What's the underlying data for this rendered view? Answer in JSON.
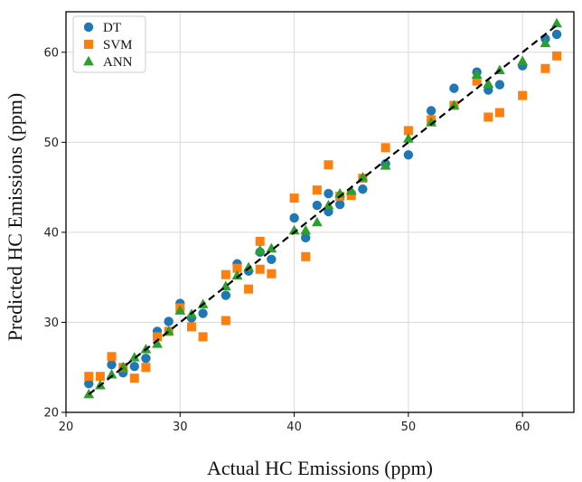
{
  "chart_data": {
    "type": "scatter",
    "xlabel": "Actual HC Emissions (ppm)",
    "ylabel": "Predicted HC Emissions (ppm)",
    "xlim": [
      20,
      64.5
    ],
    "ylim": [
      20,
      64.5
    ],
    "xticks": [
      "20",
      "30",
      "40",
      "50",
      "60"
    ],
    "yticks": [
      "20",
      "30",
      "40",
      "50",
      "60"
    ],
    "grid": true,
    "legend_position": "top-left",
    "reference_line": {
      "style": "dashed",
      "color": "#000000",
      "from": [
        22,
        22
      ],
      "to": [
        63,
        63
      ]
    },
    "series": [
      {
        "name": "DT",
        "marker": "circle",
        "color": "#1f77b4",
        "points": [
          [
            22,
            23.2
          ],
          [
            24,
            25.3
          ],
          [
            25,
            24.4
          ],
          [
            26,
            25.1
          ],
          [
            27,
            26.0
          ],
          [
            28,
            29.0
          ],
          [
            29,
            30.1
          ],
          [
            30,
            32.1
          ],
          [
            31,
            30.5
          ],
          [
            32,
            31.0
          ],
          [
            34,
            33.0
          ],
          [
            35,
            36.5
          ],
          [
            36,
            35.7
          ],
          [
            37,
            37.8
          ],
          [
            38,
            37.0
          ],
          [
            40,
            41.6
          ],
          [
            41,
            39.4
          ],
          [
            42,
            43.0
          ],
          [
            43,
            44.3
          ],
          [
            43,
            42.3
          ],
          [
            44,
            43.1
          ],
          [
            45,
            44.3
          ],
          [
            46,
            44.8
          ],
          [
            48,
            47.6
          ],
          [
            50,
            48.6
          ],
          [
            52,
            53.5
          ],
          [
            54,
            56.0
          ],
          [
            56,
            57.8
          ],
          [
            57,
            55.8
          ],
          [
            58,
            56.4
          ],
          [
            60,
            58.5
          ],
          [
            62,
            61.5
          ],
          [
            63,
            62.0
          ]
        ]
      },
      {
        "name": "SVM",
        "marker": "square",
        "color": "#ff7f0e",
        "points": [
          [
            22,
            24.0
          ],
          [
            23,
            24.0
          ],
          [
            24,
            26.2
          ],
          [
            25,
            25.0
          ],
          [
            26,
            23.8
          ],
          [
            27,
            25.0
          ],
          [
            28,
            28.4
          ],
          [
            29,
            29.0
          ],
          [
            30,
            31.6
          ],
          [
            31,
            29.5
          ],
          [
            32,
            28.4
          ],
          [
            34,
            35.3
          ],
          [
            34,
            30.2
          ],
          [
            35,
            36.0
          ],
          [
            36,
            33.7
          ],
          [
            37,
            39.0
          ],
          [
            37,
            35.9
          ],
          [
            38,
            35.4
          ],
          [
            40,
            43.8
          ],
          [
            41,
            37.3
          ],
          [
            42,
            44.7
          ],
          [
            43,
            47.5
          ],
          [
            44,
            44.0
          ],
          [
            45,
            44.1
          ],
          [
            46,
            46.0
          ],
          [
            48,
            49.4
          ],
          [
            50,
            51.3
          ],
          [
            52,
            52.5
          ],
          [
            54,
            54.1
          ],
          [
            56,
            56.8
          ],
          [
            57,
            52.8
          ],
          [
            58,
            53.3
          ],
          [
            60,
            55.2
          ],
          [
            62,
            58.2
          ],
          [
            63,
            59.6
          ]
        ]
      },
      {
        "name": "ANN",
        "marker": "triangle",
        "color": "#2ca02c",
        "points": [
          [
            22,
            22.0
          ],
          [
            23,
            23.0
          ],
          [
            24,
            24.2
          ],
          [
            25,
            25.0
          ],
          [
            26,
            26.1
          ],
          [
            27,
            27.0
          ],
          [
            28,
            27.6
          ],
          [
            29,
            29.0
          ],
          [
            30,
            31.3
          ],
          [
            31,
            30.9
          ],
          [
            32,
            32.0
          ],
          [
            34,
            34.0
          ],
          [
            35,
            35.2
          ],
          [
            36,
            36.1
          ],
          [
            37,
            38.0
          ],
          [
            38,
            38.2
          ],
          [
            40,
            40.2
          ],
          [
            41,
            40.2
          ],
          [
            42,
            41.1
          ],
          [
            43,
            43.0
          ],
          [
            44,
            44.3
          ],
          [
            45,
            44.6
          ],
          [
            46,
            46.1
          ],
          [
            48,
            47.4
          ],
          [
            50,
            50.4
          ],
          [
            52,
            52.2
          ],
          [
            54,
            54.1
          ],
          [
            56,
            57.5
          ],
          [
            57,
            56.5
          ],
          [
            58,
            58.0
          ],
          [
            60,
            59.0
          ],
          [
            62,
            61.0
          ],
          [
            63,
            63.2
          ]
        ]
      }
    ]
  }
}
